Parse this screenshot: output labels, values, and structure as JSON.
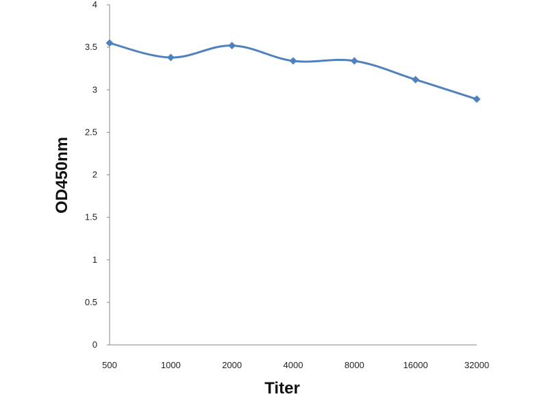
{
  "chart_data": {
    "type": "line",
    "title": "",
    "xlabel": "Titer",
    "ylabel": "OD450nm",
    "categories": [
      "500",
      "1000",
      "2000",
      "4000",
      "8000",
      "16000",
      "32000"
    ],
    "series": [
      {
        "values": [
          3.55,
          3.38,
          3.52,
          3.34,
          3.34,
          3.12,
          2.89
        ]
      }
    ],
    "ylim": [
      0,
      4
    ],
    "yticks": [
      "0",
      "0.5",
      "1",
      "1.5",
      "2",
      "2.5",
      "3",
      "3.5",
      "4"
    ],
    "grid": false,
    "legend": "none",
    "series_color": "#4F81BD",
    "axis_color": "#868686"
  }
}
